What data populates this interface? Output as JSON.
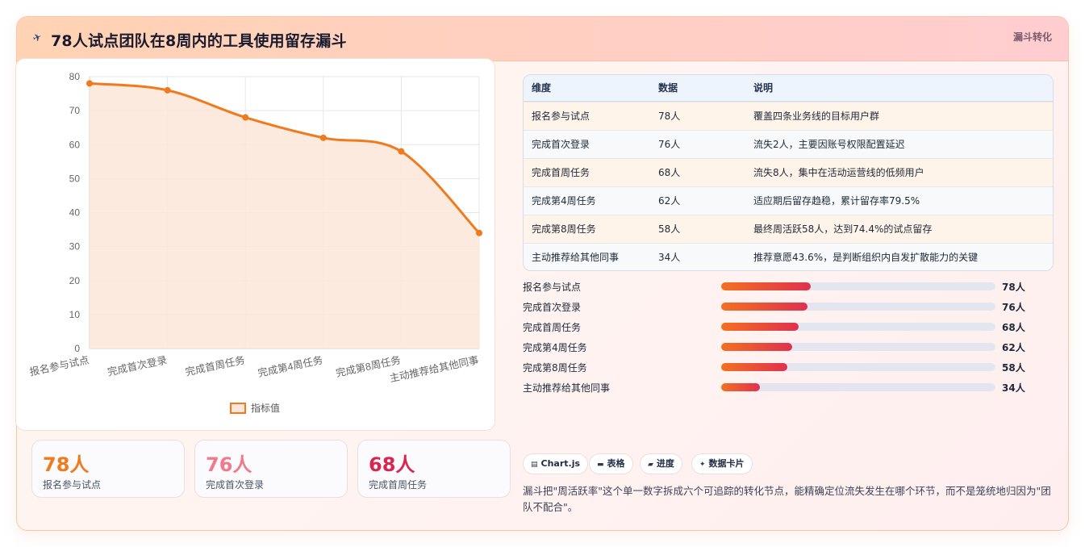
{
  "header": {
    "icon": "plane-icon",
    "title": "78人试点团队在8周内的工具使用留存漏斗",
    "tag": "漏斗转化"
  },
  "chart_data": {
    "type": "line",
    "categories": [
      "报名参与试点",
      "完成首次登录",
      "完成首周任务",
      "完成第4周任务",
      "完成第8周任务",
      "主动推荐给其他同事"
    ],
    "series": [
      {
        "name": "指标值",
        "values": [
          78,
          76,
          68,
          62,
          58,
          34
        ]
      }
    ],
    "ylim": [
      0,
      80
    ],
    "yticks": [
      "0",
      "10",
      "20",
      "30",
      "40",
      "50",
      "60",
      "70",
      "80"
    ],
    "legend": "bottom",
    "grid": true,
    "line_color": "#f07a1e",
    "fill_color": "#fde6d8"
  },
  "stats": [
    {
      "value": "78人",
      "label": "报名参与试点",
      "color": "#f07a1e"
    },
    {
      "value": "76人",
      "label": "完成首次登录",
      "color": "#f07a8a"
    },
    {
      "value": "68人",
      "label": "完成首周任务",
      "color": "#d8264f"
    }
  ],
  "table": {
    "headers": [
      "维度",
      "数据",
      "说明"
    ],
    "rows": [
      [
        "报名参与试点",
        "78人",
        "覆盖四条业务线的目标用户群"
      ],
      [
        "完成首次登录",
        "76人",
        "流失2人，主要因账号权限配置延迟"
      ],
      [
        "完成首周任务",
        "68人",
        "流失8人，集中在活动运营线的低频用户"
      ],
      [
        "完成第4周任务",
        "62人",
        "适应期后留存趋稳，累计留存率79.5%"
      ],
      [
        "完成第8周任务",
        "58人",
        "最终周活跃58人，达到74.4%的试点留存"
      ],
      [
        "主动推荐给其他同事",
        "34人",
        "推荐意愿43.6%，是判断组织内自发扩散能力的关键"
      ]
    ]
  },
  "progress": [
    {
      "label": "报名参与试点",
      "value": "78人",
      "fraction": 0.325
    },
    {
      "label": "完成首次登录",
      "value": "76人",
      "fraction": 0.315
    },
    {
      "label": "完成首周任务",
      "value": "68人",
      "fraction": 0.283
    },
    {
      "label": "完成第4周任务",
      "value": "62人",
      "fraction": 0.258
    },
    {
      "label": "完成第8周任务",
      "value": "58人",
      "fraction": 0.24
    },
    {
      "label": "主动推荐给其他同事",
      "value": "34人",
      "fraction": 0.142
    }
  ],
  "chips": [
    {
      "icon": "chart-icon",
      "glyph": "▤",
      "label": "Chart.js"
    },
    {
      "icon": "table-icon",
      "glyph": "▬",
      "label": "表格"
    },
    {
      "icon": "progress-icon",
      "glyph": "▰",
      "label": "进度"
    },
    {
      "icon": "sparkle-icon",
      "glyph": "✦",
      "label": "数据卡片"
    }
  ],
  "summary": "漏斗把\"周活跃率\"这个单一数字拆成六个可追踪的转化节点，能精确定位流失发生在哪个环节，而不是笼统地归因为\"团队不配合\"。"
}
